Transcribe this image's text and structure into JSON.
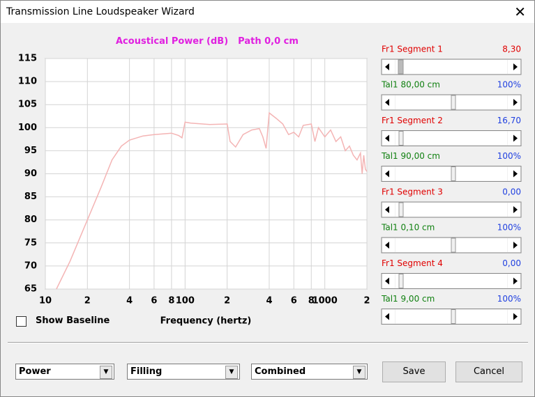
{
  "window": {
    "title": "Transmission Line Loudspeaker Wizard"
  },
  "chart_data": {
    "type": "line",
    "title": "Acoustical Power (dB)",
    "subtitle": "Path 0,0 cm",
    "x_label": "Frequency (hertz)",
    "x": [
      12,
      15,
      20,
      25,
      30,
      35,
      40,
      50,
      60,
      80,
      90,
      95,
      100,
      110,
      150,
      200,
      210,
      230,
      260,
      300,
      340,
      360,
      380,
      400,
      450,
      500,
      550,
      600,
      650,
      700,
      800,
      850,
      900,
      1000,
      1100,
      1200,
      1300,
      1400,
      1500,
      1600,
      1700,
      1800,
      1850,
      1900,
      1950,
      2000
    ],
    "series": [
      {
        "color": "#f4b4b4",
        "values": [
          65,
          71,
          80,
          87,
          93,
          96,
          97.3,
          98.2,
          98.5,
          98.8,
          98.3,
          97.8,
          101.2,
          101,
          100.7,
          100.8,
          97,
          95.8,
          98.5,
          99.5,
          99.8,
          98,
          95.5,
          103.2,
          102,
          100.8,
          98.5,
          99,
          98,
          100.5,
          100.8,
          97,
          100,
          98,
          99.5,
          97,
          98,
          95,
          96,
          94,
          93,
          94.5,
          90,
          94,
          91,
          90.5
        ]
      }
    ],
    "log_x": true,
    "xlim": [
      10,
      2000
    ],
    "xticks": [
      10,
      {
        "value": 20,
        "label": "2"
      },
      {
        "value": 40,
        "label": "4"
      },
      {
        "value": 60,
        "label": "6"
      },
      {
        "value": 80,
        "label": "8"
      },
      100,
      {
        "value": 200,
        "label": "2"
      },
      {
        "value": 400,
        "label": "4"
      },
      {
        "value": 600,
        "label": "6"
      },
      {
        "value": 800,
        "label": "8"
      },
      1000,
      {
        "value": 2000,
        "label": "2"
      }
    ],
    "ylim": [
      65,
      115
    ],
    "yticks": [
      65,
      70,
      75,
      80,
      85,
      90,
      95,
      100,
      105,
      110,
      115
    ],
    "grid": true
  },
  "segments": [
    {
      "label": "Fr1  Segment 1",
      "value": "8,30",
      "tal": "Tal1  80,00 cm",
      "tal_value": "100%"
    },
    {
      "label": "Fr1  Segment 2",
      "value": "16,70",
      "tal": "Tal1  90,00 cm",
      "tal_value": "100%"
    },
    {
      "label": "Fr1  Segment 3",
      "value": "0,00",
      "tal": "Tal1  0,10 cm",
      "tal_value": "100%"
    },
    {
      "label": "Fr1  Segment 4",
      "value": "0,00",
      "tal": "Tal1  9,00 cm",
      "tal_value": "100%"
    }
  ],
  "checkbox": "Show Baseline",
  "dropdowns": [
    "Power",
    "Filling",
    "Combined"
  ],
  "buttons": [
    "Save",
    "Cancel"
  ]
}
